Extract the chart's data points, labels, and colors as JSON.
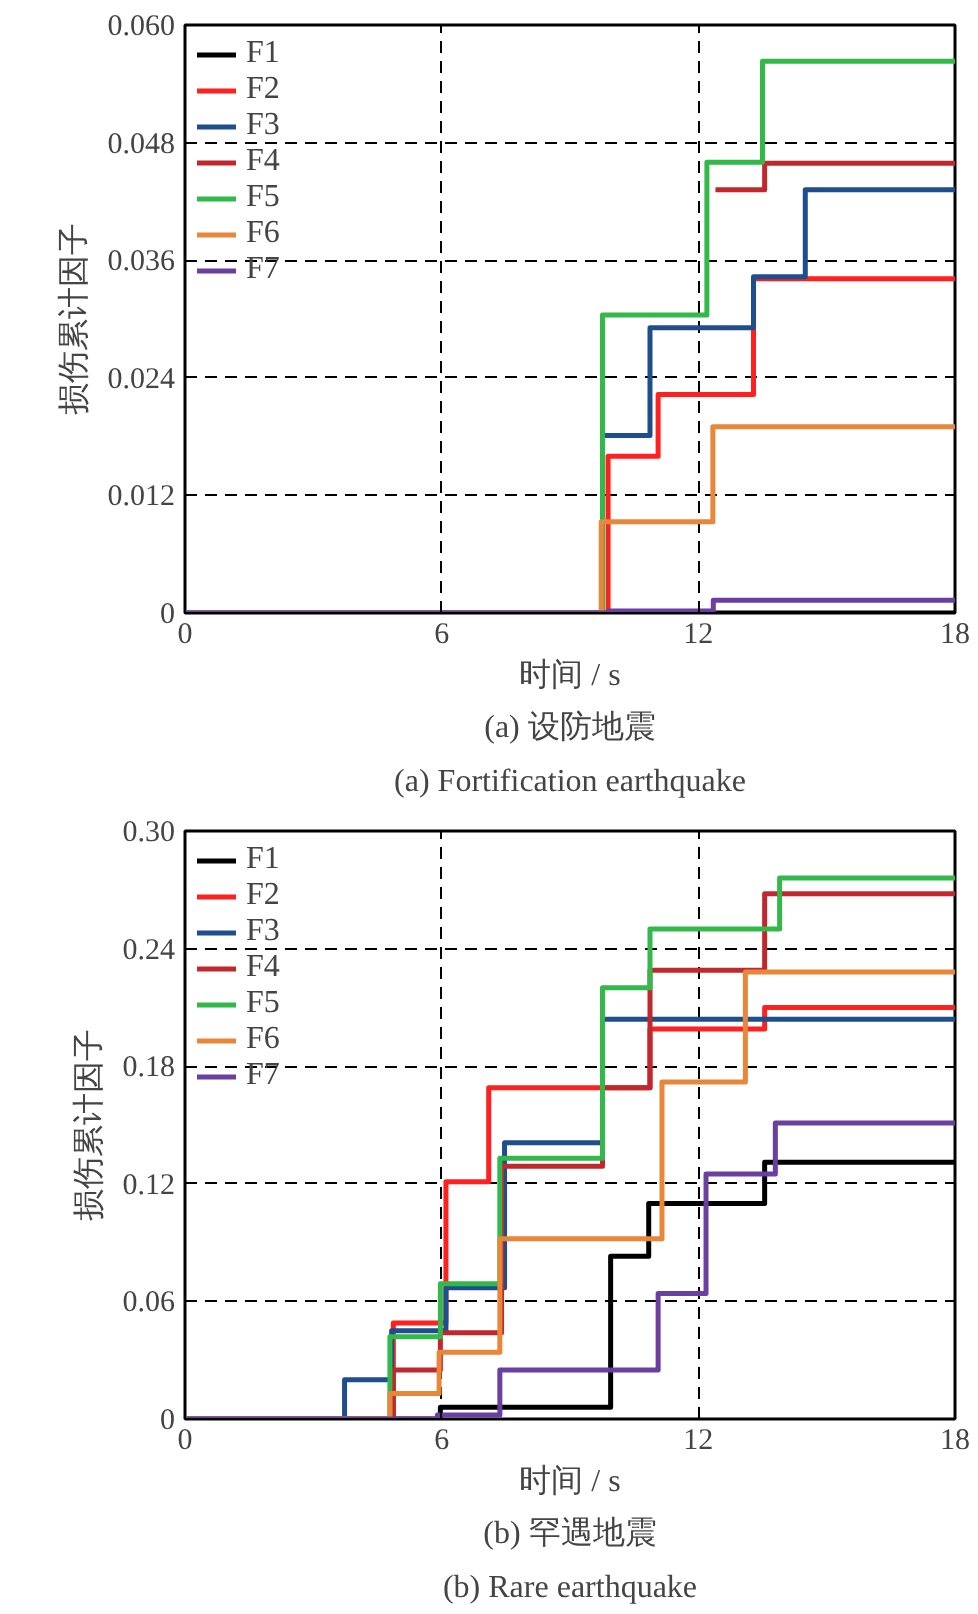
{
  "chart_data": [
    {
      "type": "step",
      "xlabel": "时间 / s",
      "ylabel": "损伤累计因子",
      "annotations": [
        "(a) 设防地震",
        "(a) Fortification earthquake"
      ],
      "xlim": [
        0,
        18
      ],
      "xticks": [
        0,
        6,
        12,
        18
      ],
      "ylim": [
        0,
        0.06
      ],
      "yticks": [
        0,
        {
          "value": 0.012,
          "label": "0.012"
        },
        {
          "value": 0.024,
          "label": "0.024"
        },
        {
          "value": 0.036,
          "label": "0.036"
        },
        0.048,
        {
          "value": 0.06,
          "label": "0.060"
        }
      ],
      "grid": true,
      "legend": "top left",
      "line_style": "solid",
      "series": [
        {
          "name": "F1",
          "color": "#000000",
          "x": [
            0,
            18
          ],
          "values": [
            0,
            0
          ]
        },
        {
          "name": "F2",
          "color": "#ff2020",
          "x": [
            0,
            9.89,
            11.06,
            13.29,
            18
          ],
          "values": [
            0,
            0.016,
            0.0223,
            0.0341,
            0.0341
          ]
        },
        {
          "name": "F3",
          "color": "#1f4e8c",
          "x": [
            0,
            9.76,
            10.87,
            13.29,
            14.5,
            18
          ],
          "values": [
            0,
            0.0181,
            0.0291,
            0.0343,
            0.0432,
            0.0432
          ]
        },
        {
          "name": "F4",
          "color": "#c0282e",
          "x": [
            12.4,
            13.55,
            18
          ],
          "values": [
            0.0432,
            0.0459,
            0.0459
          ]
        },
        {
          "name": "F5",
          "color": "#33b84a",
          "x": [
            0,
            9.76,
            12.2,
            13.5,
            18
          ],
          "values": [
            0,
            0.0304,
            0.046,
            0.0563,
            0.0563
          ]
        },
        {
          "name": "F6",
          "color": "#e8873a",
          "x": [
            0,
            9.73,
            12.34,
            18
          ],
          "values": [
            0,
            0.0093,
            0.019,
            0.019
          ]
        },
        {
          "name": "F7",
          "color": "#6a3fa0",
          "x": [
            0,
            9.9,
            12.35,
            18
          ],
          "values": [
            0,
            0.0002,
            0.0013,
            0.0013
          ]
        }
      ]
    },
    {
      "type": "step",
      "xlabel": "时间 / s",
      "ylabel": "损伤累计因子",
      "annotations": [
        "(b) 罕遇地震",
        "(b) Rare earthquake"
      ],
      "xlim": [
        0,
        18
      ],
      "xticks": [
        0,
        6,
        12,
        18
      ],
      "ylim": [
        0,
        0.3
      ],
      "yticks": [
        0,
        {
          "value": 0.06,
          "label": "0.06"
        },
        {
          "value": 0.12,
          "label": "0.12"
        },
        {
          "value": 0.18,
          "label": "0.18"
        },
        {
          "value": 0.24,
          "label": "0.24"
        },
        {
          "value": 0.3,
          "label": "0.30"
        }
      ],
      "grid": true,
      "legend": "top left",
      "line_style": "solid",
      "series": [
        {
          "name": "F1",
          "color": "#000000",
          "x": [
            0,
            5.97,
            9.95,
            10.84,
            13.55,
            18
          ],
          "values": [
            0,
            0.006,
            0.083,
            0.11,
            0.131,
            0.131
          ]
        },
        {
          "name": "F2",
          "color": "#ff2020",
          "x": [
            0,
            4.87,
            6.1,
            7.1,
            10.87,
            13.55,
            18
          ],
          "values": [
            0,
            0.049,
            0.121,
            0.169,
            0.199,
            0.21,
            0.21
          ]
        },
        {
          "name": "F3",
          "color": "#1f4e8c",
          "x": [
            0,
            3.73,
            4.83,
            6.1,
            7.47,
            9.76,
            18
          ],
          "values": [
            0,
            0.02,
            0.045,
            0.067,
            0.141,
            0.204,
            0.204
          ]
        },
        {
          "name": "F4",
          "color": "#c0282e",
          "x": [
            0,
            4.87,
            5.97,
            7.4,
            9.76,
            10.87,
            13.55,
            18
          ],
          "values": [
            0,
            0.025,
            0.044,
            0.129,
            0.169,
            0.229,
            0.268,
            0.268
          ]
        },
        {
          "name": "F5",
          "color": "#33b84a",
          "x": [
            0,
            4.79,
            5.97,
            7.36,
            9.76,
            10.87,
            13.9,
            18
          ],
          "values": [
            0,
            0.042,
            0.069,
            0.133,
            0.22,
            0.25,
            0.276,
            0.276
          ]
        },
        {
          "name": "F6",
          "color": "#e8873a",
          "x": [
            0,
            4.79,
            5.94,
            7.36,
            11.15,
            13.1,
            18
          ],
          "values": [
            0,
            0.013,
            0.034,
            0.092,
            0.172,
            0.228,
            0.228
          ]
        },
        {
          "name": "F7",
          "color": "#6a3fa0",
          "x": [
            0,
            5.9,
            7.36,
            11.06,
            12.18,
            13.8,
            18
          ],
          "values": [
            0,
            0.002,
            0.025,
            0.064,
            0.125,
            0.151,
            0.151
          ]
        }
      ]
    }
  ]
}
